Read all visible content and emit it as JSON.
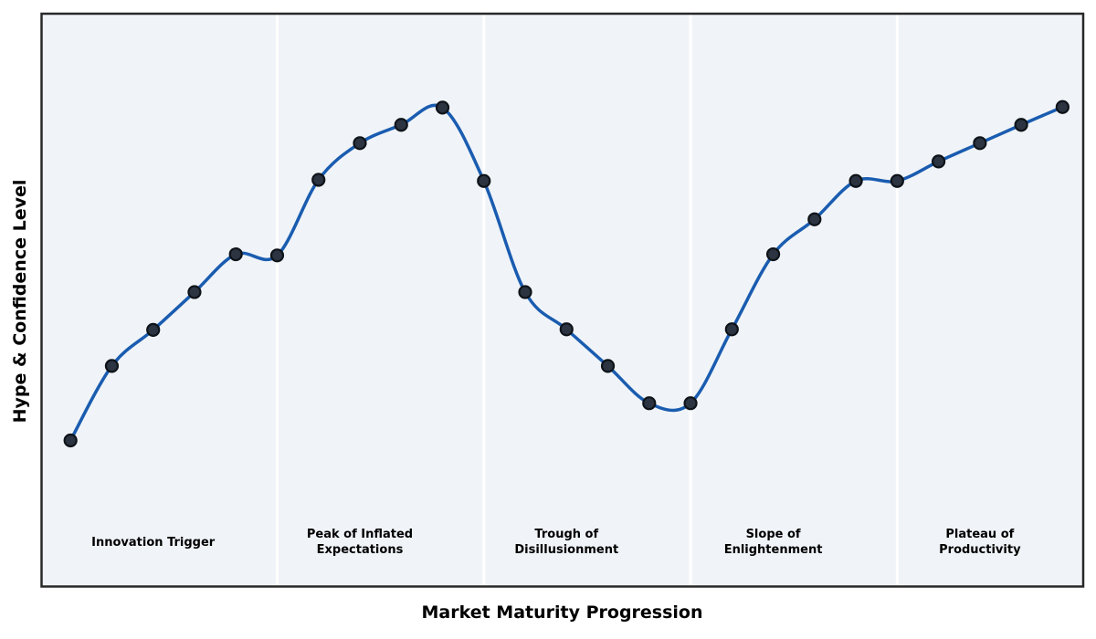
{
  "chart_data": {
    "type": "line",
    "title": "",
    "xlabel": "Market Maturity Progression",
    "ylabel": "Hype & Confidence Level",
    "x": [
      0,
      1,
      2,
      3,
      4,
      5,
      6,
      7,
      8,
      9,
      10,
      11,
      12,
      13,
      14,
      15,
      16,
      17,
      18,
      19,
      20,
      21,
      22,
      23,
      24
    ],
    "values": [
      25.5,
      38.5,
      44.8,
      51.4,
      58.0,
      57.8,
      71.0,
      77.4,
      80.6,
      83.6,
      70.8,
      51.4,
      44.9,
      38.5,
      32.0,
      32.0,
      44.9,
      58.0,
      64.1,
      70.8,
      70.8,
      74.2,
      77.4,
      80.6,
      83.7
    ],
    "xlim": [
      -0.7,
      24.5
    ],
    "ylim": [
      0,
      100
    ],
    "grid": false,
    "legend": false,
    "marker": "circle",
    "y_ticks": [],
    "x_ticks": [],
    "phases": [
      {
        "label": "Innovation Trigger",
        "x_start": -0.7,
        "x_end": 5,
        "label_x": 2
      },
      {
        "label": "Peak of Inflated Expectations",
        "x_start": 5,
        "x_end": 10,
        "label_x": 7
      },
      {
        "label": "Trough of Disillusionment",
        "x_start": 10,
        "x_end": 15,
        "label_x": 12
      },
      {
        "label": "Slope of Enlightenment",
        "x_start": 15,
        "x_end": 20,
        "label_x": 17
      },
      {
        "label": "Plateau of Productivity",
        "x_start": 20,
        "x_end": 24.5,
        "label_x": 22
      }
    ],
    "colors": {
      "line": "#1a5cb0",
      "marker_fill": "#2b3440",
      "marker_stroke": "#0e1319",
      "plot_background": "#f0f4f8",
      "figure_background": "#ffffff",
      "separator": "#ffffff",
      "border": "#282828",
      "text": "#000000"
    }
  }
}
